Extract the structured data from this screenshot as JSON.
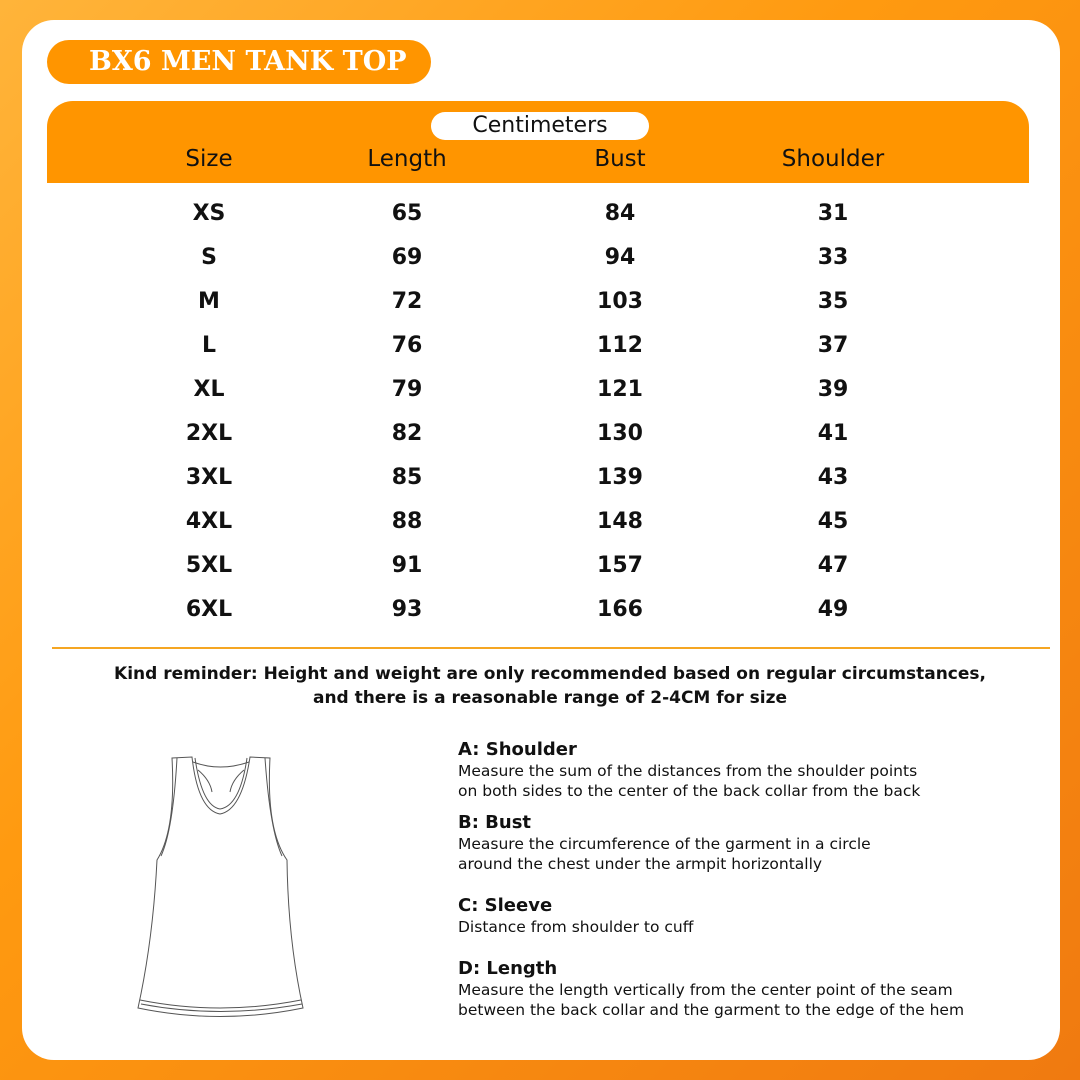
{
  "title": "BX6 MEN TANK TOP",
  "unit": "Centimeters",
  "columns": [
    "Size",
    "Length",
    "Bust",
    "Shoulder"
  ],
  "rows": [
    [
      "XS",
      "65",
      "84",
      "31"
    ],
    [
      "S",
      "69",
      "94",
      "33"
    ],
    [
      "M",
      "72",
      "103",
      "35"
    ],
    [
      "L",
      "76",
      "112",
      "37"
    ],
    [
      "XL",
      "79",
      "121",
      "39"
    ],
    [
      "2XL",
      "82",
      "130",
      "41"
    ],
    [
      "3XL",
      "85",
      "139",
      "43"
    ],
    [
      "4XL",
      "88",
      "148",
      "45"
    ],
    [
      "5XL",
      "91",
      "157",
      "47"
    ],
    [
      "6XL",
      "93",
      "166",
      "49"
    ]
  ],
  "reminder": [
    "Kind reminder: Height and weight are only recommended based on regular circumstances,",
    "and there is a reasonable range of 2-4CM for size"
  ],
  "measures": [
    {
      "label": "A: Shoulder",
      "lines": [
        "Measure the sum of the distances from the shoulder points",
        "on both sides to the center of the back collar from the back"
      ]
    },
    {
      "label": "B: Bust",
      "lines": [
        "Measure the circumference of the garment in a circle",
        "around the chest under the armpit horizontally"
      ]
    },
    {
      "label": "C: Sleeve",
      "lines": [
        "Distance from shoulder to cuff"
      ]
    },
    {
      "label": "D: Length",
      "lines": [
        "Measure the length vertically from the center point of the seam",
        "between the back collar and the garment to the edge of the hem"
      ]
    }
  ],
  "colors": {
    "accent": "#ff9500",
    "divider": "#f5a623"
  },
  "illustration": "tank-top-icon"
}
